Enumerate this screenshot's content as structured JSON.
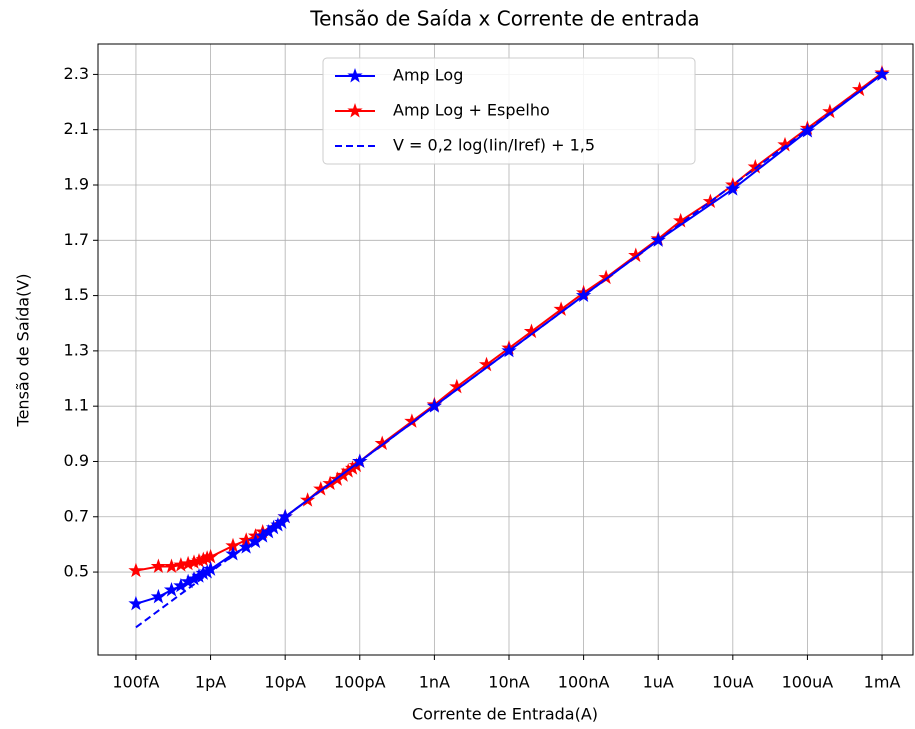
{
  "chart_data": {
    "type": "line",
    "title": "Tensão de Saída x Corrente de entrada",
    "xlabel": "Corrente de Entrada(A)",
    "ylabel": "Tensão de Saída(V)",
    "xscale": "log",
    "grid": true,
    "legend": "upper center",
    "xlim": [
      3.1e-14,
      0.0026
    ],
    "ylim": [
      0.2,
      2.41
    ],
    "xticks": [
      {
        "value": 1e-13,
        "label": "100fA"
      },
      {
        "value": 1e-12,
        "label": "1pA"
      },
      {
        "value": 1e-11,
        "label": "10pA"
      },
      {
        "value": 1e-10,
        "label": "100pA"
      },
      {
        "value": 1e-09,
        "label": "1nA"
      },
      {
        "value": 1e-08,
        "label": "10nA"
      },
      {
        "value": 1e-07,
        "label": "100nA"
      },
      {
        "value": 1e-06,
        "label": "1uA"
      },
      {
        "value": 1e-05,
        "label": "10uA"
      },
      {
        "value": 0.0001,
        "label": "100uA"
      },
      {
        "value": 0.001,
        "label": "1mA"
      }
    ],
    "yticks": [
      0.5,
      0.7,
      0.9,
      1.1,
      1.3,
      1.5,
      1.7,
      1.9,
      2.1,
      2.3
    ],
    "series": [
      {
        "name": "Amp Log + Espelho",
        "color": "#ff0000",
        "marker": "star",
        "style": "solid",
        "x": [
          1e-13,
          2e-13,
          3e-13,
          4e-13,
          5e-13,
          6e-13,
          7e-13,
          8e-13,
          9e-13,
          1e-12,
          2e-12,
          3e-12,
          4e-12,
          5e-12,
          1e-11,
          2e-11,
          3e-11,
          4e-11,
          5e-11,
          6e-11,
          7e-11,
          8e-11,
          9e-11,
          1e-10,
          2e-10,
          5e-10,
          1e-09,
          2e-09,
          5e-09,
          1e-08,
          2e-08,
          5e-08,
          1e-07,
          2e-07,
          5e-07,
          1e-06,
          2e-06,
          5e-06,
          1e-05,
          2e-05,
          5e-05,
          0.0001,
          0.0002,
          0.0005,
          0.001
        ],
        "values": [
          0.505,
          0.52,
          0.52,
          0.525,
          0.53,
          0.535,
          0.54,
          0.545,
          0.55,
          0.555,
          0.595,
          0.615,
          0.63,
          0.645,
          0.7,
          0.76,
          0.8,
          0.82,
          0.835,
          0.85,
          0.865,
          0.875,
          0.885,
          0.9,
          0.965,
          1.045,
          1.105,
          1.17,
          1.25,
          1.31,
          1.37,
          1.45,
          1.51,
          1.565,
          1.645,
          1.705,
          1.77,
          1.84,
          1.9,
          1.965,
          2.045,
          2.105,
          2.165,
          2.245,
          2.305
        ]
      },
      {
        "name": "Amp Log",
        "color": "#0000ff",
        "marker": "star",
        "style": "solid",
        "x": [
          1e-13,
          2e-13,
          3e-13,
          4e-13,
          5e-13,
          6e-13,
          7e-13,
          8e-13,
          9e-13,
          1e-12,
          2e-12,
          3e-12,
          4e-12,
          5e-12,
          6e-12,
          7e-12,
          8e-12,
          9e-12,
          1e-11,
          1e-10,
          1e-09,
          1e-08,
          1e-07,
          1e-06,
          1e-05,
          0.0001,
          0.001
        ],
        "values": [
          0.385,
          0.41,
          0.435,
          0.45,
          0.465,
          0.475,
          0.485,
          0.495,
          0.5,
          0.51,
          0.565,
          0.59,
          0.61,
          0.63,
          0.645,
          0.66,
          0.67,
          0.68,
          0.7,
          0.9,
          1.1,
          1.3,
          1.5,
          1.7,
          1.885,
          2.095,
          2.3
        ]
      },
      {
        "name": "V = 0,2 log(Iin/Iref) + 1,5",
        "color": "#0000ff",
        "marker": "none",
        "style": "dashed",
        "x": [
          1e-13,
          0.001
        ],
        "values": [
          0.3,
          2.3
        ]
      }
    ],
    "legend_order": [
      1,
      0,
      2
    ]
  }
}
